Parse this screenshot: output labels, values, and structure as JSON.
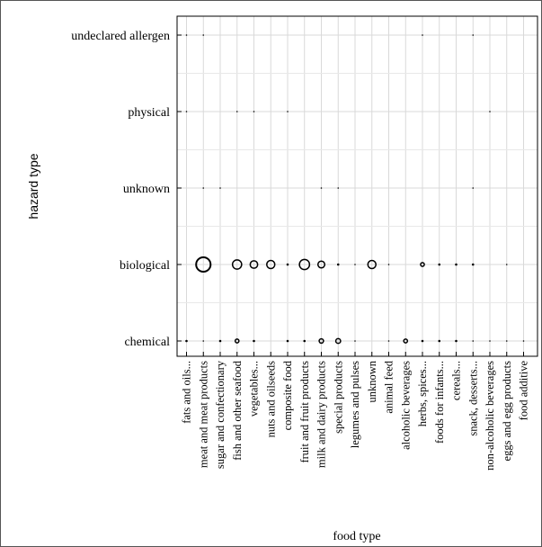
{
  "chart_data": {
    "type": "scatter",
    "title": "",
    "xlabel": "food type",
    "ylabel": "hazard type",
    "x_categories": [
      "fats and oils...",
      "meat and meat products",
      "sugar and confectionary",
      "fish and other seafood",
      "vegetables...",
      "nuts and oilseeds",
      "composite food",
      "fruit and fruit products",
      "milk and dairy products",
      "special products",
      "legumes and pulses",
      "unknown",
      "animal feed",
      "alcoholic beverages",
      "herbs, spices...",
      "foods for infants...",
      "cereals...",
      "snack, desserts...",
      "non-alcoholic beverages",
      "eggs and egg products",
      "food additive"
    ],
    "y_categories": [
      "chemical",
      "biological",
      "unknown",
      "physical",
      "undeclared allergen"
    ],
    "grid": true,
    "marker_color": "#000000",
    "points": [
      {
        "x": "fats and oils...",
        "y": "undeclared allergen",
        "size": 1
      },
      {
        "x": "meat and meat products",
        "y": "undeclared allergen",
        "size": 1
      },
      {
        "x": "herbs, spices...",
        "y": "undeclared allergen",
        "size": 1
      },
      {
        "x": "snack, desserts...",
        "y": "undeclared allergen",
        "size": 1
      },
      {
        "x": "fats and oils...",
        "y": "physical",
        "size": 1
      },
      {
        "x": "fish and other seafood",
        "y": "physical",
        "size": 1
      },
      {
        "x": "vegetables...",
        "y": "physical",
        "size": 1
      },
      {
        "x": "composite food",
        "y": "physical",
        "size": 1
      },
      {
        "x": "non-alcoholic beverages",
        "y": "physical",
        "size": 1
      },
      {
        "x": "meat and meat products",
        "y": "unknown",
        "size": 1
      },
      {
        "x": "sugar and confectionary",
        "y": "unknown",
        "size": 1
      },
      {
        "x": "milk and dairy products",
        "y": "unknown",
        "size": 1
      },
      {
        "x": "special products",
        "y": "unknown",
        "size": 1
      },
      {
        "x": "snack, desserts...",
        "y": "unknown",
        "size": 1
      },
      {
        "x": "meat and meat products",
        "y": "biological",
        "size": 45
      },
      {
        "x": "fish and other seafood",
        "y": "biological",
        "size": 18
      },
      {
        "x": "vegetables...",
        "y": "biological",
        "size": 12
      },
      {
        "x": "nuts and oilseeds",
        "y": "biological",
        "size": 14
      },
      {
        "x": "composite food",
        "y": "biological",
        "size": 2
      },
      {
        "x": "fruit and fruit products",
        "y": "biological",
        "size": 22
      },
      {
        "x": "milk and dairy products",
        "y": "biological",
        "size": 10
      },
      {
        "x": "special products",
        "y": "biological",
        "size": 2
      },
      {
        "x": "legumes and pulses",
        "y": "biological",
        "size": 1
      },
      {
        "x": "unknown",
        "y": "biological",
        "size": 14
      },
      {
        "x": "animal feed",
        "y": "biological",
        "size": 1
      },
      {
        "x": "herbs, spices...",
        "y": "biological",
        "size": 3
      },
      {
        "x": "foods for infants...",
        "y": "biological",
        "size": 2
      },
      {
        "x": "cereals...",
        "y": "biological",
        "size": 2
      },
      {
        "x": "snack, desserts...",
        "y": "biological",
        "size": 2
      },
      {
        "x": "eggs and egg products",
        "y": "biological",
        "size": 1
      },
      {
        "x": "fats and oils...",
        "y": "chemical",
        "size": 2
      },
      {
        "x": "meat and meat products",
        "y": "chemical",
        "size": 1
      },
      {
        "x": "sugar and confectionary",
        "y": "chemical",
        "size": 2
      },
      {
        "x": "fish and other seafood",
        "y": "chemical",
        "size": 3
      },
      {
        "x": "vegetables...",
        "y": "chemical",
        "size": 2
      },
      {
        "x": "composite food",
        "y": "chemical",
        "size": 2
      },
      {
        "x": "fruit and fruit products",
        "y": "chemical",
        "size": 2
      },
      {
        "x": "milk and dairy products",
        "y": "chemical",
        "size": 4
      },
      {
        "x": "special products",
        "y": "chemical",
        "size": 5
      },
      {
        "x": "legumes and pulses",
        "y": "chemical",
        "size": 1
      },
      {
        "x": "animal feed",
        "y": "chemical",
        "size": 1
      },
      {
        "x": "alcoholic beverages",
        "y": "chemical",
        "size": 3
      },
      {
        "x": "herbs, spices...",
        "y": "chemical",
        "size": 2
      },
      {
        "x": "foods for infants...",
        "y": "chemical",
        "size": 2
      },
      {
        "x": "cereals...",
        "y": "chemical",
        "size": 2
      },
      {
        "x": "snack, desserts...",
        "y": "chemical",
        "size": 1
      },
      {
        "x": "non-alcoholic beverages",
        "y": "chemical",
        "size": 1
      },
      {
        "x": "eggs and egg products",
        "y": "chemical",
        "size": 1
      },
      {
        "x": "food additive",
        "y": "chemical",
        "size": 1
      }
    ]
  }
}
